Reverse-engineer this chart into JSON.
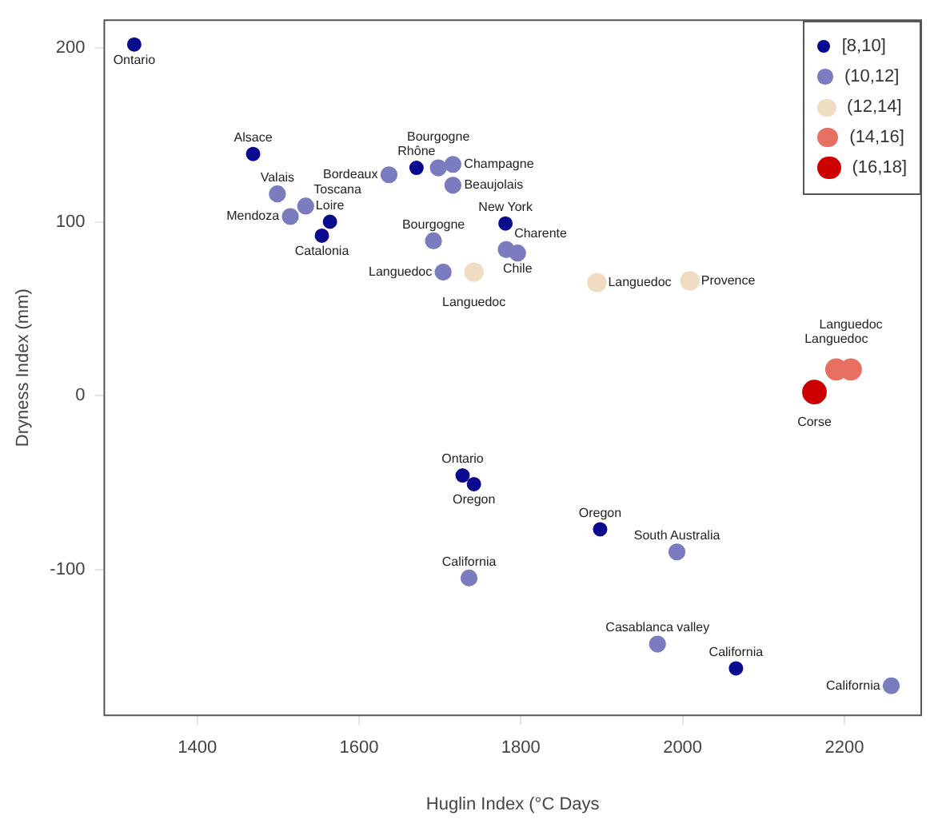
{
  "chart_data": {
    "type": "scatter",
    "xlabel": "Huglin Index (°C Days",
    "ylabel": "Dryness Index (mm)",
    "xlim": [
      1285,
      2295
    ],
    "xticks": [
      1400,
      1600,
      1800,
      2000,
      2200
    ],
    "ylim": [
      -184,
      216
    ],
    "yticks": [
      -100,
      0,
      100,
      200
    ],
    "grid": false,
    "legend": "top right",
    "marker": "circle",
    "series": [
      {
        "name": "[8,10]",
        "color": "#0a0a8f",
        "x": [
          1322,
          1469,
          1564,
          1554,
          1671,
          1781,
          1728,
          1742,
          1898,
          2066
        ],
        "values": [
          202,
          139,
          100,
          92,
          131,
          99,
          -46,
          -51,
          -77,
          -157
        ]
      },
      {
        "name": "(10,12]",
        "color": "#7b7bbf",
        "x": [
          1499,
          1515,
          1534,
          1637,
          1698,
          1716,
          1716,
          1692,
          1782,
          1796,
          1704,
          1736,
          1993,
          1969,
          2258
        ],
        "values": [
          116,
          103,
          109,
          127,
          131,
          133,
          121,
          89,
          84,
          82,
          71,
          -105,
          -90,
          -143,
          -167
        ]
      },
      {
        "name": "(12,14]",
        "color": "#f0dcc0",
        "x": [
          1742,
          1894,
          2009
        ],
        "values": [
          71,
          65,
          66
        ]
      },
      {
        "name": "(14,16]",
        "color": "#e87060",
        "x": [
          2190,
          2208
        ],
        "values": [
          15,
          15
        ]
      },
      {
        "name": "(16,18]",
        "color": "#cc0000",
        "x": [
          2163
        ],
        "values": [
          2
        ]
      }
    ],
    "annotations": [
      {
        "text": "Ontario",
        "x": 1322,
        "y": 202
      },
      {
        "text": "Alsace",
        "x": 1469,
        "y": 139
      },
      {
        "text": "Loire",
        "x": 1564,
        "y": 100
      },
      {
        "text": "Catalonia",
        "x": 1554,
        "y": 92
      },
      {
        "text": "Rhône",
        "x": 1671,
        "y": 131
      },
      {
        "text": "New York",
        "x": 1781,
        "y": 99
      },
      {
        "text": "Ontario",
        "x": 1728,
        "y": -46
      },
      {
        "text": "Oregon",
        "x": 1742,
        "y": -51
      },
      {
        "text": "Oregon",
        "x": 1898,
        "y": -77
      },
      {
        "text": "California",
        "x": 2066,
        "y": -157
      },
      {
        "text": "Valais",
        "x": 1499,
        "y": 116
      },
      {
        "text": "Mendoza",
        "x": 1515,
        "y": 103
      },
      {
        "text": "Toscana",
        "x": 1534,
        "y": 109
      },
      {
        "text": "Bordeaux",
        "x": 1637,
        "y": 127
      },
      {
        "text": "Bourgogne",
        "x": 1698,
        "y": 131
      },
      {
        "text": "Champagne",
        "x": 1716,
        "y": 133
      },
      {
        "text": "Beaujolais",
        "x": 1716,
        "y": 121
      },
      {
        "text": "Bourgogne",
        "x": 1692,
        "y": 89
      },
      {
        "text": "Charente",
        "x": 1782,
        "y": 84
      },
      {
        "text": "Chile",
        "x": 1796,
        "y": 82
      },
      {
        "text": "Languedoc",
        "x": 1704,
        "y": 71
      },
      {
        "text": "California",
        "x": 1736,
        "y": -105
      },
      {
        "text": "South Australia",
        "x": 1993,
        "y": -90
      },
      {
        "text": "Casablanca valley",
        "x": 1969,
        "y": -143
      },
      {
        "text": "California",
        "x": 2258,
        "y": -167
      },
      {
        "text": "Languedoc",
        "x": 1742,
        "y": 71
      },
      {
        "text": "Languedoc",
        "x": 1894,
        "y": 65
      },
      {
        "text": "Provence",
        "x": 2009,
        "y": 66
      },
      {
        "text": "Languedoc",
        "x": 2190,
        "y": 15
      },
      {
        "text": "Languedoc",
        "x": 2208,
        "y": 15
      },
      {
        "text": "Corse",
        "x": 2163,
        "y": 2
      }
    ]
  }
}
